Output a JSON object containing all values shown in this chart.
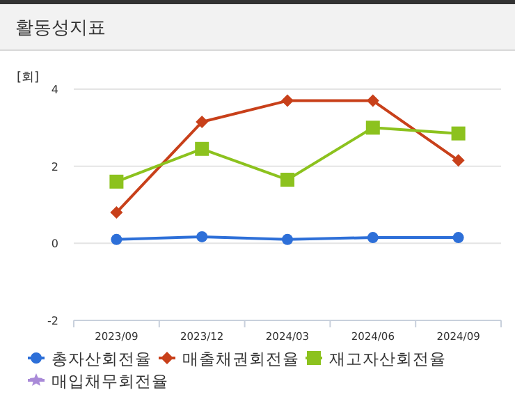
{
  "chart_data": {
    "type": "line",
    "title": "활동성지표",
    "ylabel": "[회]",
    "categories": [
      "2023/09",
      "2023/12",
      "2024/03",
      "2024/06",
      "2024/09"
    ],
    "ylim": [
      -2,
      4
    ],
    "yticks": [
      -2,
      0,
      2,
      4
    ],
    "grid": "y",
    "legend": "bottom",
    "series": [
      {
        "name": "총자산회전율",
        "color": "#2d6fd8",
        "marker": "circle",
        "values": [
          0.1,
          0.17,
          0.1,
          0.15,
          0.15
        ]
      },
      {
        "name": "매출채권회전율",
        "color": "#c8401a",
        "marker": "diamond",
        "values": [
          0.8,
          3.15,
          3.7,
          3.7,
          2.15
        ]
      },
      {
        "name": "재고자산회전율",
        "color": "#8cc21e",
        "marker": "square",
        "values": [
          1.6,
          2.45,
          1.65,
          3.0,
          2.85
        ]
      },
      {
        "name": "매입채무회전율",
        "color": "#a98ad8",
        "marker": "star",
        "values": [
          null,
          null,
          null,
          null,
          null
        ]
      }
    ]
  }
}
